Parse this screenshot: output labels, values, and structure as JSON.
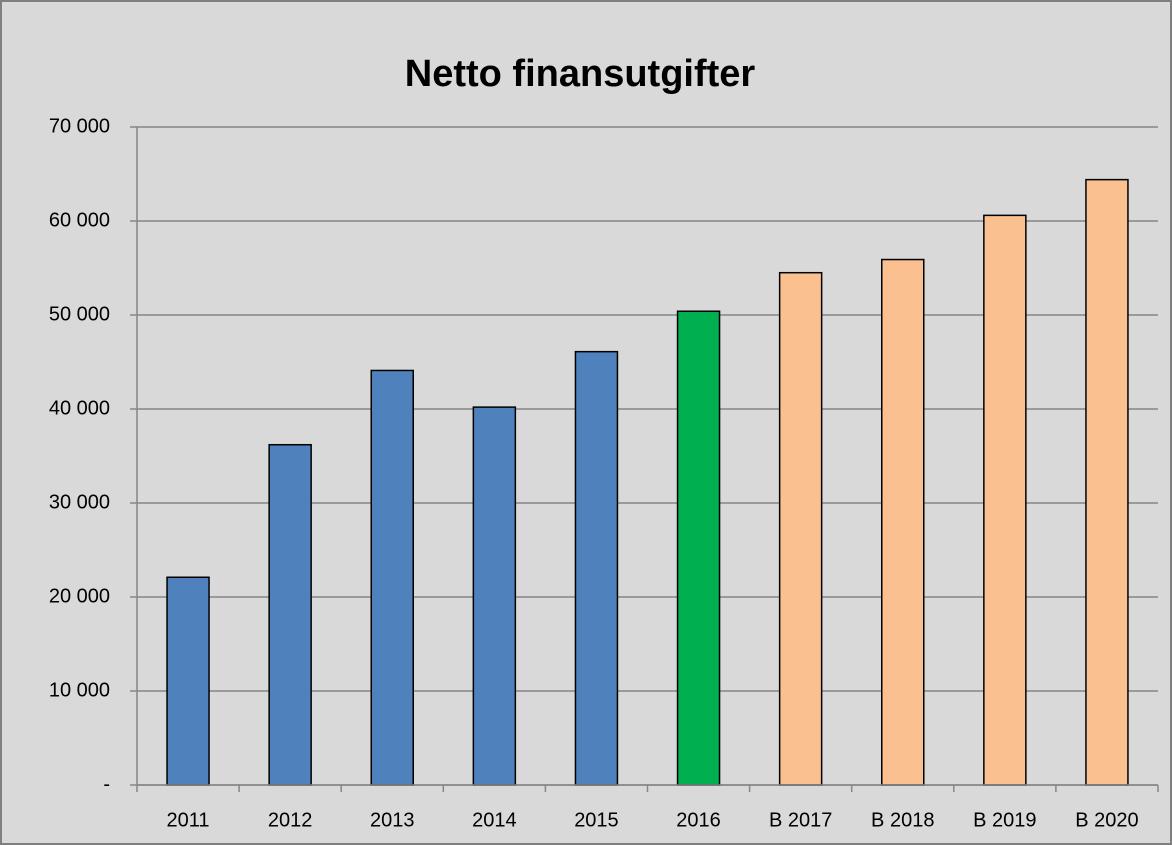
{
  "chart_data": {
    "type": "bar",
    "title": "Netto finansutgifter",
    "categories": [
      "2011",
      "2012",
      "2013",
      "2014",
      "2015",
      "2016",
      "B 2017",
      "B 2018",
      "B 2019",
      "B 2020"
    ],
    "values": [
      22100,
      36200,
      44100,
      40200,
      46100,
      50400,
      54500,
      55900,
      60600,
      64400
    ],
    "colors": [
      "#4f81bd",
      "#4f81bd",
      "#4f81bd",
      "#4f81bd",
      "#4f81bd",
      "#00b050",
      "#fac090",
      "#fac090",
      "#fac090",
      "#fac090"
    ],
    "ylim": [
      0,
      70000
    ],
    "yticks": [
      {
        "value": 0,
        "label": "-"
      },
      {
        "value": 10000,
        "label": "10 000"
      },
      {
        "value": 20000,
        "label": "20 000"
      },
      {
        "value": 30000,
        "label": "30 000"
      },
      {
        "value": 40000,
        "label": "40 000"
      },
      {
        "value": 50000,
        "label": "50 000"
      },
      {
        "value": 60000,
        "label": "60 000"
      },
      {
        "value": 70000,
        "label": "70 000"
      }
    ],
    "grid": true
  }
}
